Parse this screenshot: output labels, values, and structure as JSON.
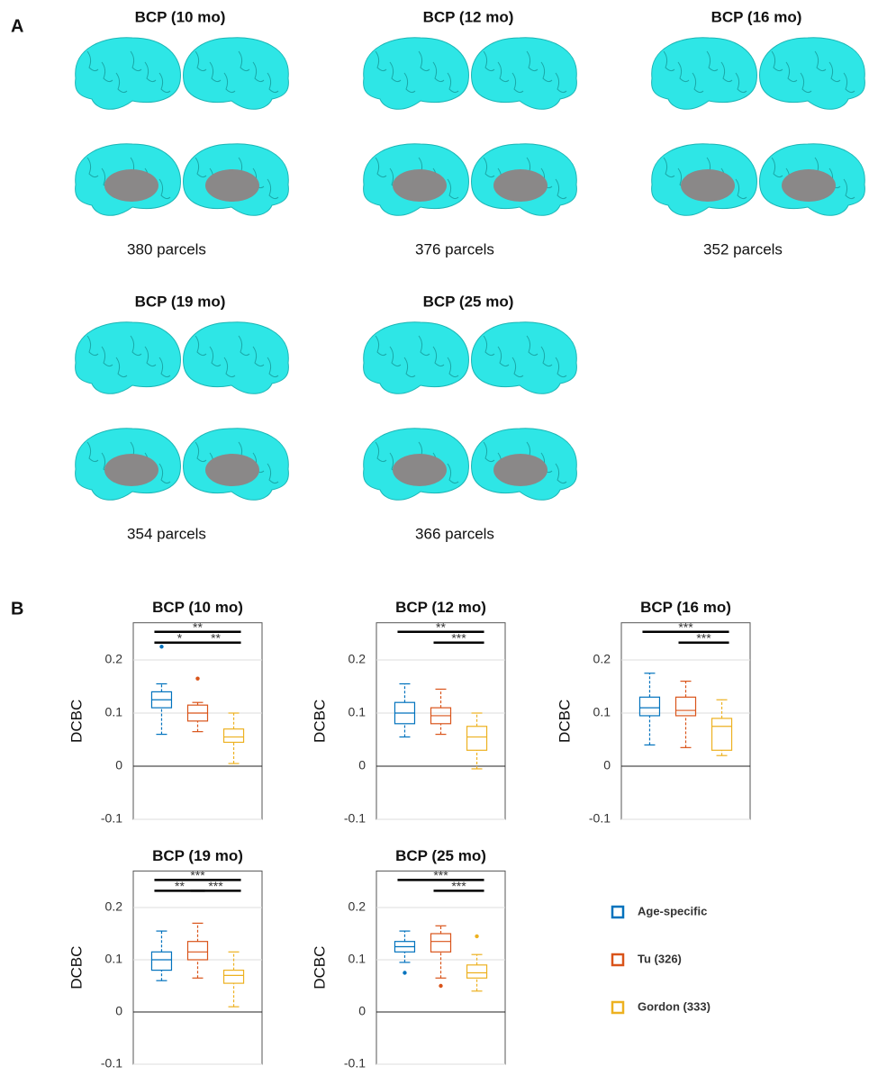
{
  "panel_a": {
    "label": "A",
    "atlases": [
      {
        "title": "BCP (10 mo)",
        "parcels": "380 parcels"
      },
      {
        "title": "BCP (12 mo)",
        "parcels": "376 parcels"
      },
      {
        "title": "BCP (16 mo)",
        "parcels": "352 parcels"
      },
      {
        "title": "BCP (19 mo)",
        "parcels": "354 parcels"
      },
      {
        "title": "BCP (25 mo)",
        "parcels": "366 parcels"
      }
    ]
  },
  "panel_b": {
    "label": "B"
  },
  "legend": {
    "entries": [
      {
        "name": "Age-specific",
        "color": "#0072BD"
      },
      {
        "name": "Tu (326)",
        "color": "#D95319"
      },
      {
        "name": "Gordon (333)",
        "color": "#EDB120"
      }
    ]
  },
  "chart_data": [
    {
      "type": "box",
      "title": "BCP (10 mo)",
      "ylabel": "DCBC",
      "ylim": [
        -0.1,
        0.27
      ],
      "yticks": [
        -0.1,
        0,
        0.1,
        0.2
      ],
      "grid": true,
      "boxes": [
        {
          "min": 0.06,
          "q1": 0.11,
          "median": 0.125,
          "q3": 0.14,
          "max": 0.155,
          "outliers": [
            0.225
          ]
        },
        {
          "min": 0.065,
          "q1": 0.085,
          "median": 0.1,
          "q3": 0.115,
          "max": 0.12,
          "outliers": [
            0.165
          ]
        },
        {
          "min": 0.005,
          "q1": 0.045,
          "median": 0.055,
          "q3": 0.07,
          "max": 0.1,
          "outliers": []
        }
      ],
      "significance": [
        {
          "groups": [
            0,
            1
          ],
          "label": "*"
        },
        {
          "groups": [
            0,
            2
          ],
          "label": "**"
        },
        {
          "groups": [
            1,
            2
          ],
          "label": "**"
        }
      ]
    },
    {
      "type": "box",
      "title": "BCP (12 mo)",
      "ylabel": "DCBC",
      "ylim": [
        -0.1,
        0.27
      ],
      "yticks": [
        -0.1,
        0,
        0.1,
        0.2
      ],
      "grid": true,
      "boxes": [
        {
          "min": 0.055,
          "q1": 0.08,
          "median": 0.1,
          "q3": 0.12,
          "max": 0.155,
          "outliers": []
        },
        {
          "min": 0.06,
          "q1": 0.08,
          "median": 0.095,
          "q3": 0.11,
          "max": 0.145,
          "outliers": []
        },
        {
          "min": -0.005,
          "q1": 0.03,
          "median": 0.055,
          "q3": 0.075,
          "max": 0.1,
          "outliers": []
        }
      ],
      "significance": [
        {
          "groups": [
            0,
            2
          ],
          "label": "**"
        },
        {
          "groups": [
            1,
            2
          ],
          "label": "***"
        }
      ]
    },
    {
      "type": "box",
      "title": "BCP (16 mo)",
      "ylabel": "DCBC",
      "ylim": [
        -0.1,
        0.27
      ],
      "yticks": [
        -0.1,
        0,
        0.1,
        0.2
      ],
      "grid": true,
      "boxes": [
        {
          "min": 0.04,
          "q1": 0.095,
          "median": 0.11,
          "q3": 0.13,
          "max": 0.175,
          "outliers": []
        },
        {
          "min": 0.035,
          "q1": 0.095,
          "median": 0.105,
          "q3": 0.13,
          "max": 0.16,
          "outliers": []
        },
        {
          "min": 0.02,
          "q1": 0.03,
          "median": 0.075,
          "q3": 0.09,
          "max": 0.125,
          "outliers": []
        }
      ],
      "significance": [
        {
          "groups": [
            0,
            2
          ],
          "label": "***"
        },
        {
          "groups": [
            1,
            2
          ],
          "label": "***"
        }
      ]
    },
    {
      "type": "box",
      "title": "BCP (19 mo)",
      "ylabel": "DCBC",
      "ylim": [
        -0.1,
        0.27
      ],
      "yticks": [
        -0.1,
        0,
        0.1,
        0.2
      ],
      "grid": true,
      "boxes": [
        {
          "min": 0.06,
          "q1": 0.08,
          "median": 0.1,
          "q3": 0.115,
          "max": 0.155,
          "outliers": []
        },
        {
          "min": 0.065,
          "q1": 0.1,
          "median": 0.115,
          "q3": 0.135,
          "max": 0.17,
          "outliers": []
        },
        {
          "min": 0.01,
          "q1": 0.055,
          "median": 0.07,
          "q3": 0.08,
          "max": 0.115,
          "outliers": []
        }
      ],
      "significance": [
        {
          "groups": [
            0,
            2
          ],
          "label": "***"
        },
        {
          "groups": [
            0,
            1
          ],
          "label": "**"
        },
        {
          "groups": [
            1,
            2
          ],
          "label": "***"
        }
      ]
    },
    {
      "type": "box",
      "title": "BCP (25 mo)",
      "ylabel": "DCBC",
      "ylim": [
        -0.1,
        0.27
      ],
      "yticks": [
        -0.1,
        0,
        0.1,
        0.2
      ],
      "grid": true,
      "boxes": [
        {
          "min": 0.095,
          "q1": 0.115,
          "median": 0.125,
          "q3": 0.135,
          "max": 0.155,
          "outliers": [
            0.075
          ]
        },
        {
          "min": 0.065,
          "q1": 0.115,
          "median": 0.135,
          "q3": 0.15,
          "max": 0.165,
          "outliers": [
            0.05
          ]
        },
        {
          "min": 0.04,
          "q1": 0.065,
          "median": 0.075,
          "q3": 0.09,
          "max": 0.11,
          "outliers": [
            0.145
          ]
        }
      ],
      "significance": [
        {
          "groups": [
            0,
            2
          ],
          "label": "***"
        },
        {
          "groups": [
            1,
            2
          ],
          "label": "***"
        }
      ]
    }
  ]
}
